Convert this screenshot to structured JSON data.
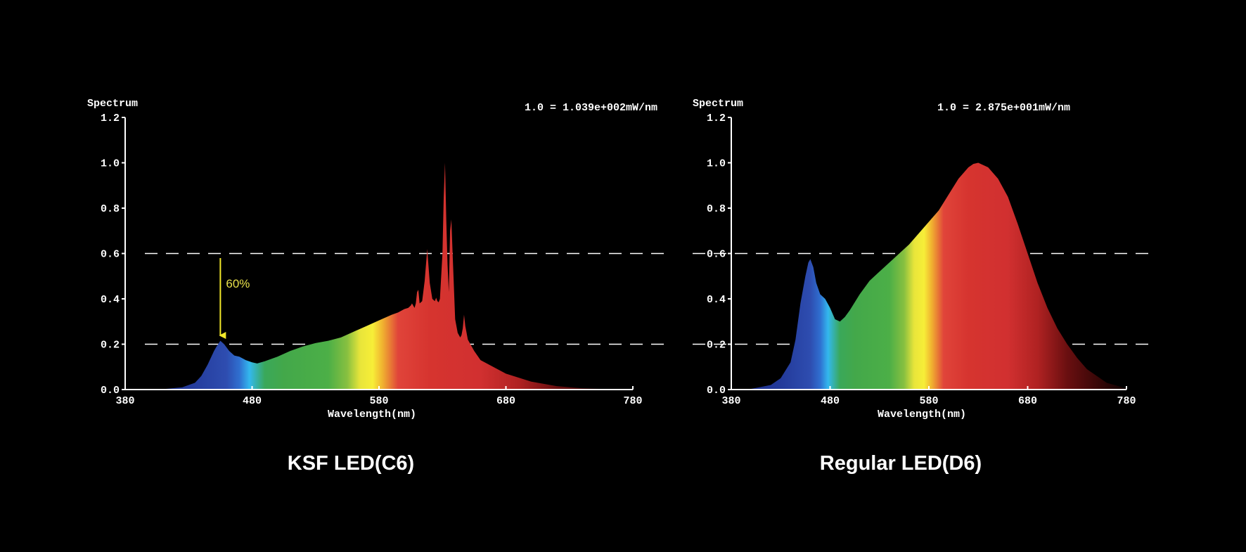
{
  "chart_data": [
    {
      "type": "area",
      "title": "KSF LED(C6)",
      "ylabel": "Spectrum",
      "xlabel": "Wavelength(nm)",
      "scale_note": "1.0 = 1.039e+002mW/nm",
      "xlim": [
        380,
        780
      ],
      "ylim": [
        0,
        1.2
      ],
      "x_ticks": [
        "380",
        "480",
        "580",
        "680",
        "780"
      ],
      "y_ticks": [
        "0.0",
        "0.2",
        "0.4",
        "0.6",
        "0.8",
        "1.0",
        "1.2"
      ],
      "reference_lines": [
        0.2,
        0.6
      ],
      "annotation": {
        "text": "60%",
        "x": 455,
        "y_from": 0.58,
        "y_to": 0.22,
        "color": "#f2e82a"
      },
      "series": [
        {
          "x": [
            380,
            410,
            425,
            435,
            440,
            445,
            450,
            452,
            455,
            458,
            462,
            466,
            470,
            475,
            480,
            484,
            490,
            500,
            510,
            520,
            530,
            540,
            550,
            560,
            570,
            580,
            590,
            595,
            600,
            603,
            605,
            606,
            608,
            609,
            610,
            611,
            612,
            614,
            616,
            618,
            620,
            622,
            624,
            625,
            626,
            627,
            628,
            630,
            631,
            632,
            633,
            634,
            635,
            636,
            637,
            638,
            640,
            642,
            644,
            645,
            646,
            647,
            648,
            650,
            655,
            660,
            670,
            680,
            700,
            720,
            740,
            760,
            780
          ],
          "y": [
            0,
            0.002,
            0.01,
            0.03,
            0.06,
            0.11,
            0.17,
            0.19,
            0.215,
            0.2,
            0.17,
            0.15,
            0.145,
            0.13,
            0.12,
            0.115,
            0.125,
            0.145,
            0.17,
            0.19,
            0.205,
            0.215,
            0.23,
            0.255,
            0.28,
            0.305,
            0.33,
            0.34,
            0.355,
            0.36,
            0.37,
            0.38,
            0.36,
            0.38,
            0.43,
            0.44,
            0.38,
            0.39,
            0.48,
            0.62,
            0.47,
            0.4,
            0.39,
            0.405,
            0.39,
            0.385,
            0.4,
            0.6,
            0.85,
            1.0,
            0.75,
            0.55,
            0.43,
            0.7,
            0.75,
            0.6,
            0.31,
            0.25,
            0.23,
            0.24,
            0.27,
            0.33,
            0.28,
            0.22,
            0.17,
            0.13,
            0.1,
            0.07,
            0.035,
            0.015,
            0.006,
            0.002,
            0
          ]
        }
      ]
    },
    {
      "type": "area",
      "title": "Regular LED(D6)",
      "ylabel": "Spectrum",
      "xlabel": "Wavelength(nm)",
      "scale_note": "1.0 = 2.875e+001mW/nm",
      "xlim": [
        380,
        780
      ],
      "ylim": [
        0,
        1.2
      ],
      "x_ticks": [
        "380",
        "480",
        "580",
        "680",
        "780"
      ],
      "y_ticks": [
        "0.0",
        "0.2",
        "0.4",
        "0.6",
        "0.8",
        "1.0",
        "1.2"
      ],
      "reference_lines": [
        0.2,
        0.6
      ],
      "series": [
        {
          "x": [
            380,
            400,
            420,
            430,
            440,
            445,
            450,
            455,
            458,
            460,
            463,
            466,
            470,
            475,
            480,
            485,
            490,
            495,
            500,
            510,
            520,
            530,
            540,
            550,
            560,
            570,
            580,
            590,
            600,
            610,
            620,
            625,
            630,
            640,
            650,
            660,
            670,
            680,
            690,
            700,
            710,
            720,
            730,
            740,
            760,
            780
          ],
          "y": [
            0,
            0.003,
            0.02,
            0.05,
            0.12,
            0.22,
            0.38,
            0.5,
            0.56,
            0.575,
            0.54,
            0.47,
            0.42,
            0.4,
            0.36,
            0.31,
            0.3,
            0.32,
            0.35,
            0.42,
            0.48,
            0.52,
            0.56,
            0.6,
            0.64,
            0.69,
            0.74,
            0.79,
            0.86,
            0.93,
            0.98,
            0.995,
            1.0,
            0.98,
            0.93,
            0.85,
            0.73,
            0.6,
            0.47,
            0.36,
            0.27,
            0.2,
            0.14,
            0.09,
            0.03,
            0.005
          ]
        }
      ]
    }
  ]
}
